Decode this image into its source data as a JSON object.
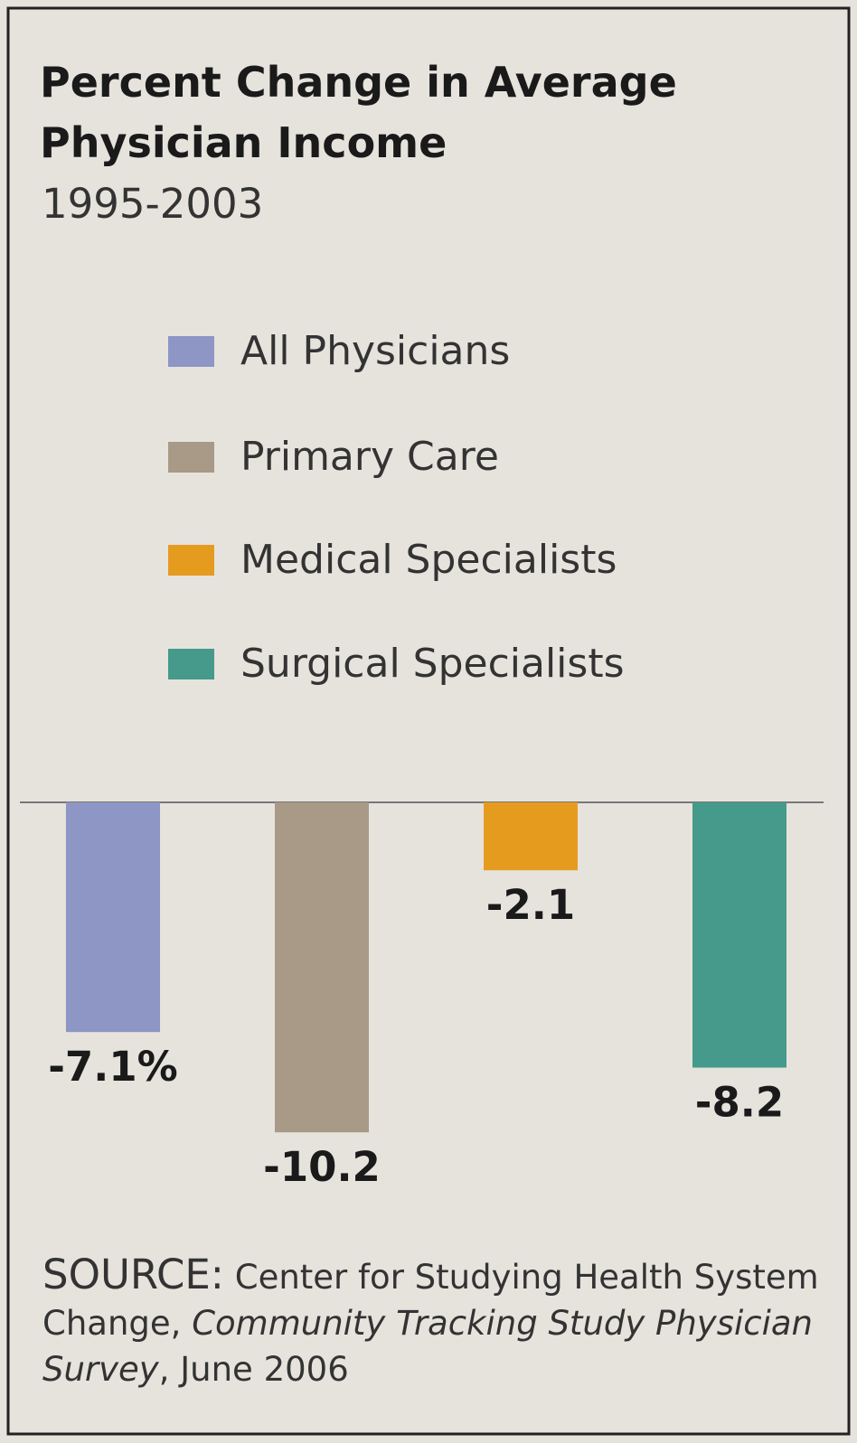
{
  "chart_data": {
    "type": "bar",
    "title": "Percent Change in Average Physician Income",
    "subtitle": "1995-2003",
    "categories": [
      null
    ],
    "series": [
      {
        "name": "All Physicians",
        "color": "#8d96c4",
        "values": [
          -7.1
        ],
        "value_labels": [
          "-7.1%"
        ]
      },
      {
        "name": "Primary Care",
        "color": "#a89a87",
        "values": [
          -10.2
        ]
      },
      {
        "name": "Medical Specialists",
        "color": "#e59c1e",
        "values": [
          -2.1
        ]
      },
      {
        "name": "Surgical Specialists",
        "color": "#459a8b",
        "values": [
          -8.2
        ]
      }
    ],
    "source": {
      "label": "SOURCE:",
      "org": "Center for Studying Health System Change,",
      "study": "Community Tracking Study Physician Survey",
      "date": ", June 2006"
    }
  }
}
